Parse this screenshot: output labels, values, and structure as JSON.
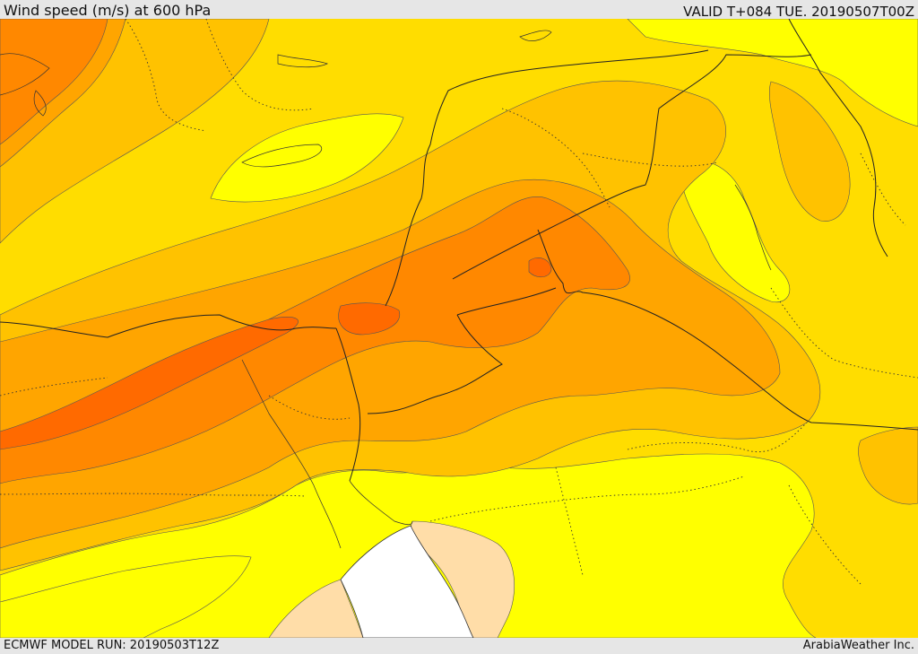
{
  "header": {
    "title": "Wind speed (m/s) at 600 hPa",
    "valid": "VALID T+084 TUE. 20190507T00Z"
  },
  "footer": {
    "model_run": "ECMWF MODEL RUN: 20190503T12Z",
    "credit": "ArabiaWeather Inc."
  },
  "colors": {
    "yellow": "#ffff00",
    "gold": "#ffdd00",
    "amber": "#ffc200",
    "orange_light": "#ffa500",
    "orange": "#ff8800",
    "orange_deep": "#ff6a00",
    "land_peach": "#ffdda8",
    "sea_white": "#ffffff"
  }
}
